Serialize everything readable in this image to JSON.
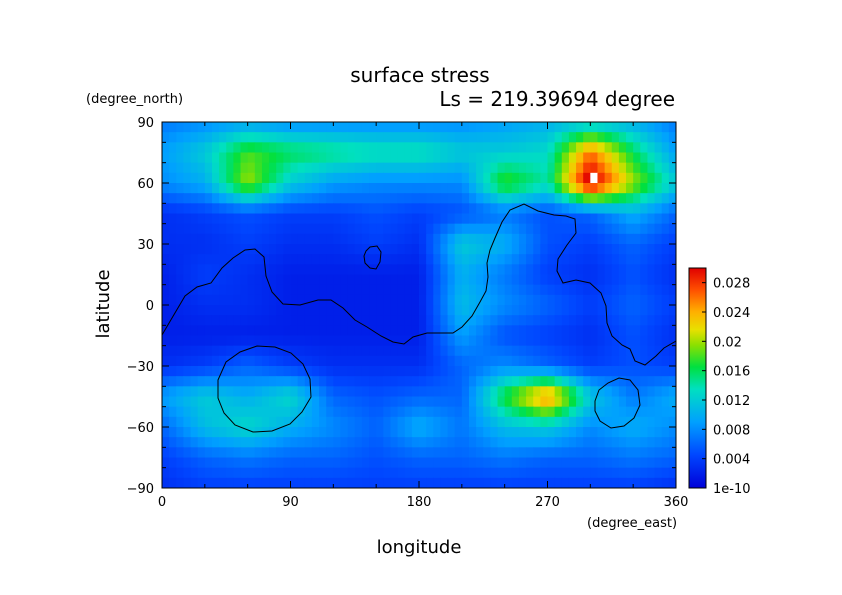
{
  "chart_data": {
    "type": "heatmap",
    "title": "surface stress",
    "subtitle": "Ls = 219.39694 degree",
    "xlabel": "longitude",
    "ylabel": "latitude",
    "x_unit": "(degree_east)",
    "y_unit": "(degree_north)",
    "xlim": [
      0,
      360
    ],
    "ylim": [
      -90,
      90
    ],
    "x_ticks": [
      "0",
      "90",
      "180",
      "270",
      "360"
    ],
    "y_ticks": [
      "90",
      "60",
      "30",
      "0",
      "−30",
      "−60",
      "−90"
    ],
    "colorbar": {
      "min": 0,
      "max": 0.03,
      "tick_labels": [
        "0.028",
        "0.024",
        "0.02",
        "0.016",
        "0.012",
        "0.008",
        "0.004",
        "1e-10"
      ],
      "tick_values": [
        0.028,
        0.024,
        0.02,
        0.016,
        0.012,
        0.008,
        0.004,
        0
      ]
    },
    "lon_grid": [
      0,
      30,
      60,
      90,
      120,
      150,
      180,
      210,
      240,
      270,
      300,
      330,
      360
    ],
    "lat_grid": [
      90,
      75,
      60,
      45,
      30,
      15,
      0,
      -15,
      -30,
      -45,
      -60,
      -75,
      -90
    ],
    "values": [
      [
        0.007,
        0.008,
        0.009,
        0.008,
        0.008,
        0.008,
        0.008,
        0.008,
        0.009,
        0.01,
        0.011,
        0.01,
        0.007
      ],
      [
        0.009,
        0.012,
        0.018,
        0.016,
        0.015,
        0.014,
        0.014,
        0.012,
        0.012,
        0.013,
        0.026,
        0.016,
        0.009
      ],
      [
        0.008,
        0.01,
        0.02,
        0.012,
        0.009,
        0.008,
        0.008,
        0.008,
        0.018,
        0.014,
        0.032,
        0.02,
        0.012
      ],
      [
        0.003,
        0.004,
        0.005,
        0.004,
        0.004,
        0.005,
        0.004,
        0.005,
        0.007,
        0.005,
        0.006,
        0.01,
        0.006
      ],
      [
        0.003,
        0.003,
        0.004,
        0.003,
        0.003,
        0.004,
        0.003,
        0.012,
        0.01,
        0.005,
        0.004,
        0.006,
        0.004
      ],
      [
        0.002,
        0.004,
        0.003,
        0.002,
        0.002,
        0.002,
        0.002,
        0.01,
        0.007,
        0.004,
        0.003,
        0.005,
        0.003
      ],
      [
        0.002,
        0.003,
        0.003,
        0.002,
        0.002,
        0.002,
        0.002,
        0.011,
        0.008,
        0.006,
        0.004,
        0.006,
        0.004
      ],
      [
        0.002,
        0.002,
        0.002,
        0.002,
        0.002,
        0.002,
        0.002,
        0.009,
        0.005,
        0.004,
        0.003,
        0.005,
        0.003
      ],
      [
        0.003,
        0.004,
        0.006,
        0.004,
        0.003,
        0.003,
        0.003,
        0.006,
        0.008,
        0.006,
        0.004,
        0.005,
        0.004
      ],
      [
        0.009,
        0.012,
        0.01,
        0.013,
        0.006,
        0.005,
        0.006,
        0.006,
        0.017,
        0.026,
        0.012,
        0.007,
        0.01
      ],
      [
        0.006,
        0.011,
        0.013,
        0.01,
        0.008,
        0.006,
        0.01,
        0.007,
        0.011,
        0.012,
        0.008,
        0.01,
        0.008
      ],
      [
        0.004,
        0.006,
        0.007,
        0.006,
        0.006,
        0.005,
        0.006,
        0.006,
        0.007,
        0.006,
        0.006,
        0.007,
        0.006
      ],
      [
        0.003,
        0.004,
        0.004,
        0.004,
        0.004,
        0.004,
        0.004,
        0.004,
        0.004,
        0.004,
        0.004,
        0.004,
        0.003
      ]
    ],
    "grid": false,
    "legend_position": "right colorbar"
  }
}
